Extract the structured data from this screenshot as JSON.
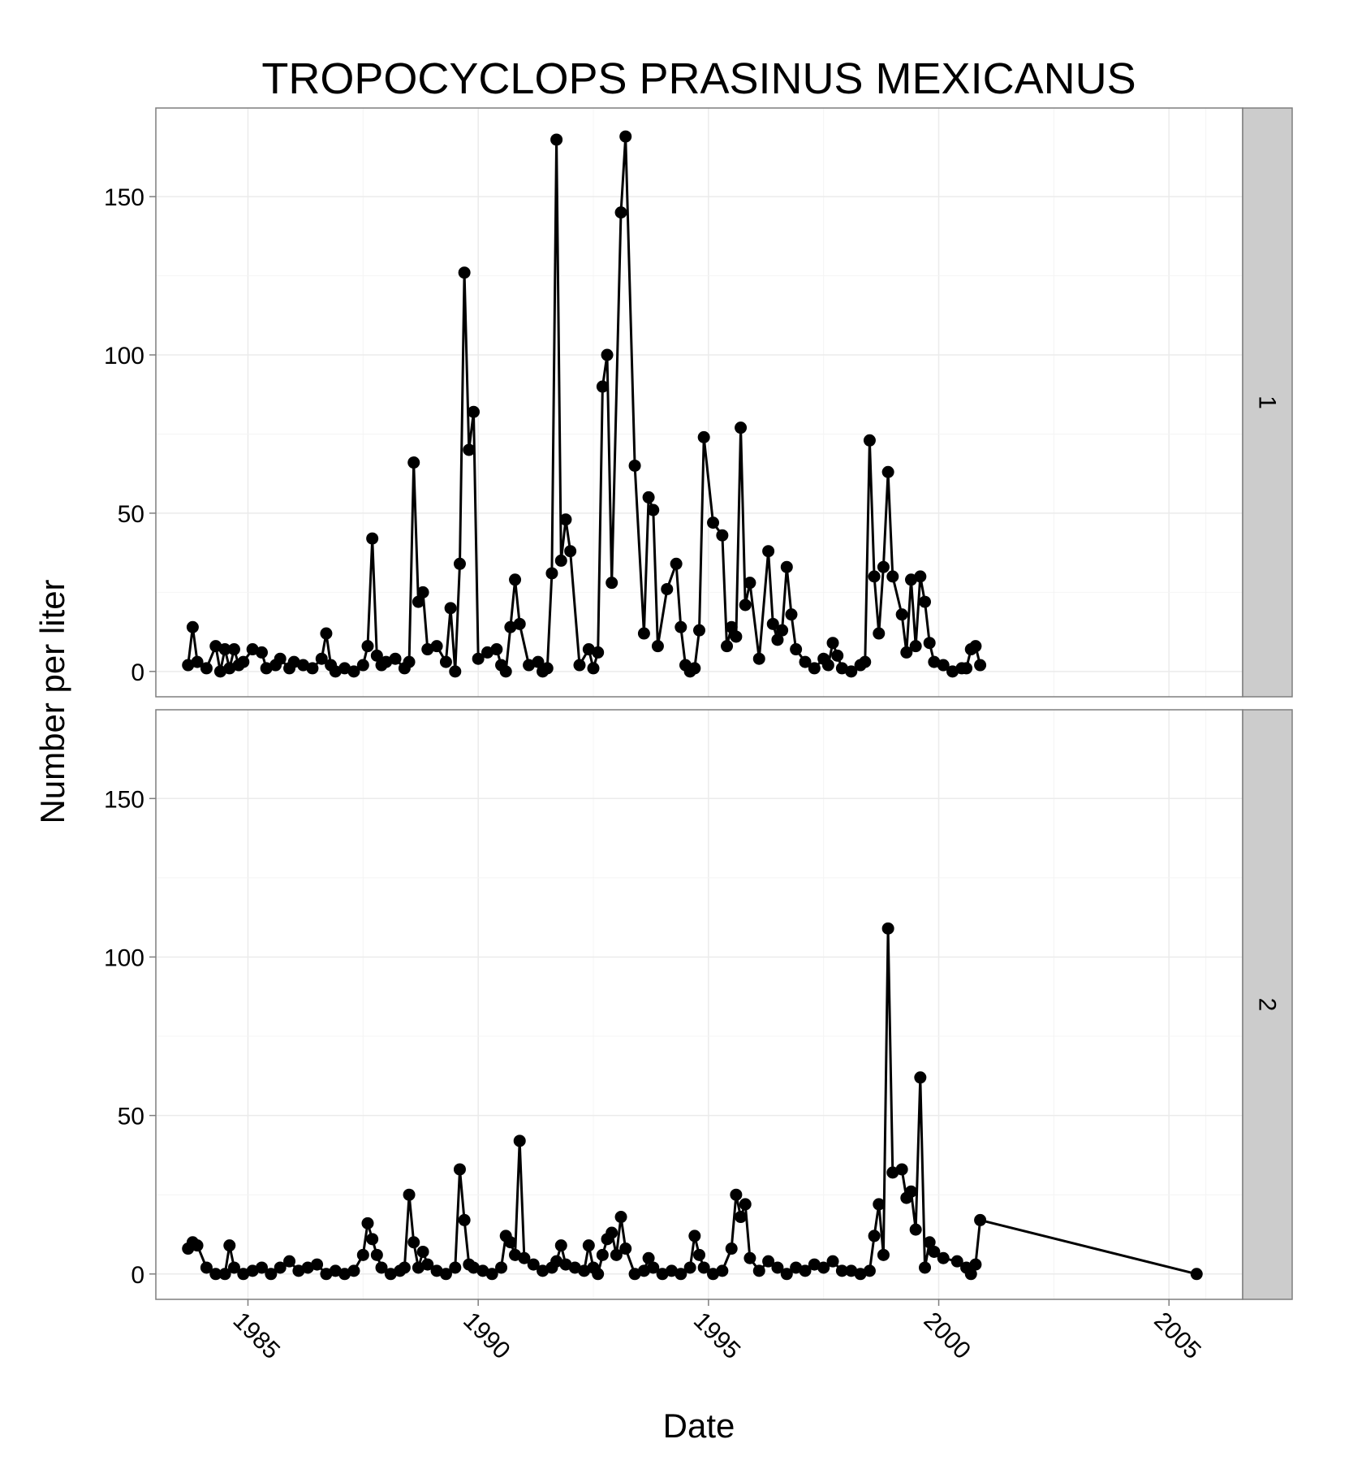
{
  "chart_data": {
    "type": "line",
    "title": "TROPOCYCLOPS PRASINUS MEXICANUS",
    "xlabel": "Date",
    "ylabel": "Number per liter",
    "xlim": [
      1983.0,
      2006.6
    ],
    "ylim": [
      -8,
      178
    ],
    "x_ticks": [
      1985,
      1990,
      1995,
      2000,
      2005
    ],
    "x_tick_labels": [
      "1985",
      "1990",
      "1995",
      "2000",
      "2005"
    ],
    "y_ticks": [
      0,
      50,
      100,
      150
    ],
    "y_tick_labels": [
      "0",
      "50",
      "100",
      "150"
    ],
    "grid": true,
    "colors": {
      "panel_background": "#ffffff",
      "strip_background": "#cccccc",
      "line": "#000000",
      "grid": "#ebebeb"
    },
    "panels": [
      {
        "strip_label": "1",
        "x": [
          1983.7,
          1983.8,
          1983.9,
          1984.1,
          1984.3,
          1984.4,
          1984.5,
          1984.6,
          1984.7,
          1984.8,
          1984.9,
          1985.1,
          1985.3,
          1985.4,
          1985.6,
          1985.7,
          1985.9,
          1986.0,
          1986.2,
          1986.4,
          1986.6,
          1986.7,
          1986.8,
          1986.9,
          1987.1,
          1987.3,
          1987.5,
          1987.6,
          1987.7,
          1987.8,
          1987.9,
          1988.0,
          1988.2,
          1988.4,
          1988.5,
          1988.6,
          1988.7,
          1988.8,
          1988.9,
          1989.1,
          1989.3,
          1989.4,
          1989.5,
          1989.6,
          1989.7,
          1989.8,
          1989.9,
          1990.0,
          1990.2,
          1990.4,
          1990.5,
          1990.6,
          1990.7,
          1990.8,
          1990.9,
          1991.1,
          1991.3,
          1991.4,
          1991.5,
          1991.6,
          1991.7,
          1991.8,
          1991.9,
          1992.0,
          1992.2,
          1992.4,
          1992.5,
          1992.6,
          1992.7,
          1992.8,
          1992.9,
          1993.1,
          1993.2,
          1993.4,
          1993.6,
          1993.7,
          1993.8,
          1993.9,
          1994.1,
          1994.3,
          1994.4,
          1994.5,
          1994.6,
          1994.7,
          1994.8,
          1994.9,
          1995.1,
          1995.3,
          1995.4,
          1995.5,
          1995.6,
          1995.7,
          1995.8,
          1995.9,
          1996.1,
          1996.3,
          1996.4,
          1996.5,
          1996.6,
          1996.7,
          1996.8,
          1996.9,
          1997.1,
          1997.3,
          1997.5,
          1997.6,
          1997.7,
          1997.8,
          1997.9,
          1998.1,
          1998.3,
          1998.4,
          1998.5,
          1998.6,
          1998.7,
          1998.8,
          1998.9,
          1999.0,
          1999.2,
          1999.3,
          1999.4,
          1999.5,
          1999.6,
          1999.7,
          1999.8,
          1999.9,
          2000.1,
          2000.3,
          2000.5,
          2000.6,
          2000.7,
          2000.8,
          2000.9
        ],
        "y": [
          2,
          14,
          3,
          1,
          8,
          0,
          7,
          1,
          7,
          2,
          3,
          7,
          6,
          1,
          2,
          4,
          1,
          3,
          2,
          1,
          4,
          12,
          2,
          0,
          1,
          0,
          2,
          8,
          42,
          5,
          2,
          3,
          4,
          1,
          3,
          66,
          22,
          25,
          7,
          8,
          3,
          20,
          0,
          34,
          126,
          70,
          82,
          4,
          6,
          7,
          2,
          0,
          14,
          29,
          15,
          2,
          3,
          0,
          1,
          31,
          168,
          35,
          48,
          38,
          2,
          7,
          1,
          6,
          90,
          100,
          28,
          145,
          169,
          65,
          12,
          55,
          51,
          8,
          26,
          34,
          14,
          2,
          0,
          1,
          13,
          74,
          47,
          43,
          8,
          14,
          11,
          77,
          21,
          28,
          4,
          38,
          15,
          10,
          13,
          33,
          18,
          7,
          3,
          1,
          4,
          2,
          9,
          5,
          1,
          0,
          2,
          3,
          73,
          30,
          12,
          33,
          63,
          30,
          18,
          6,
          29,
          8,
          30,
          22,
          9,
          3,
          2,
          0,
          1,
          1,
          7,
          8,
          2
        ],
        "x_line": [
          1983.7,
          1983.8,
          1983.9,
          1984.1,
          1984.3,
          1984.4,
          1984.5,
          1984.6,
          1984.7,
          1984.8,
          1984.9,
          1985.1,
          1985.3,
          1985.4,
          1985.6,
          1985.7,
          1985.9,
          1986.0,
          1986.2,
          1986.4,
          1986.6,
          1986.7,
          1986.8,
          1986.9,
          1987.1,
          1987.3,
          1987.5,
          1987.6,
          1987.7,
          1987.8,
          1987.9,
          1988.0,
          1988.2,
          1988.4,
          1988.5,
          1988.6,
          1988.7,
          1988.8,
          1988.9,
          1989.1,
          1989.3,
          1989.4,
          1989.5,
          1989.6,
          1989.7,
          1989.8,
          1989.9,
          1990.0,
          1990.2,
          1990.4,
          1990.5,
          1990.6,
          1990.7,
          1990.8,
          1990.9,
          1991.1,
          1991.3,
          1991.4,
          1991.5,
          1991.6,
          1991.7,
          1991.8,
          1991.9,
          1992.0,
          1992.2,
          1992.4,
          1992.5,
          1992.6,
          1992.7,
          1992.8,
          1992.9,
          1993.1,
          1993.2,
          1993.4,
          1993.6,
          1993.7,
          1993.8,
          1993.9,
          1994.1,
          1994.3,
          1994.4,
          1994.5,
          1994.6,
          1994.7,
          1994.8,
          1994.9,
          1995.1,
          1995.3,
          1995.4,
          1995.5,
          1995.6,
          1995.7,
          1995.8,
          1995.9,
          1996.1,
          1996.3,
          1996.4,
          1996.5,
          1996.6,
          1996.7,
          1996.8,
          1996.9,
          1997.1,
          1997.3,
          1997.5,
          1997.6,
          1997.7,
          1997.8,
          1997.9,
          1998.1,
          1998.3,
          1998.4,
          1998.5,
          1998.6,
          1998.7,
          1998.8,
          1998.9,
          1999.0,
          1999.2,
          1999.3,
          1999.4,
          1999.5,
          1999.6,
          1999.7,
          1999.8,
          1999.9,
          2000.1,
          2000.3,
          2000.5,
          2000.6,
          2000.7,
          2000.8,
          2000.9
        ]
      },
      {
        "strip_label": "2",
        "x": [
          1983.7,
          1983.8,
          1983.9,
          1984.1,
          1984.3,
          1984.5,
          1984.6,
          1984.7,
          1984.9,
          1985.1,
          1985.3,
          1985.5,
          1985.7,
          1985.9,
          1986.1,
          1986.3,
          1986.5,
          1986.7,
          1986.9,
          1987.1,
          1987.3,
          1987.5,
          1987.6,
          1987.7,
          1987.8,
          1987.9,
          1988.1,
          1988.3,
          1988.4,
          1988.5,
          1988.6,
          1988.7,
          1988.8,
          1988.9,
          1989.1,
          1989.3,
          1989.5,
          1989.6,
          1989.7,
          1989.8,
          1989.9,
          1990.1,
          1990.3,
          1990.5,
          1990.6,
          1990.7,
          1990.8,
          1990.9,
          1991.0,
          1991.2,
          1991.4,
          1991.6,
          1991.7,
          1991.8,
          1991.9,
          1992.1,
          1992.3,
          1992.4,
          1992.5,
          1992.6,
          1992.7,
          1992.8,
          1992.9,
          1993.0,
          1993.1,
          1993.2,
          1993.4,
          1993.6,
          1993.7,
          1993.8,
          1994.0,
          1994.2,
          1994.4,
          1994.6,
          1994.7,
          1994.8,
          1994.9,
          1995.1,
          1995.3,
          1995.5,
          1995.6,
          1995.7,
          1995.8,
          1995.9,
          1996.1,
          1996.3,
          1996.5,
          1996.7,
          1996.9,
          1997.1,
          1997.3,
          1997.5,
          1997.7,
          1997.9,
          1998.1,
          1998.3,
          1998.5,
          1998.6,
          1998.7,
          1998.8,
          1998.9,
          1999.0,
          1999.2,
          1999.3,
          1999.4,
          1999.5,
          1999.6,
          1999.7,
          1999.8,
          1999.9,
          2000.1,
          2000.4,
          2000.6,
          2000.7,
          2000.8,
          2000.9,
          2005.6
        ],
        "y": [
          8,
          10,
          9,
          2,
          0,
          0,
          9,
          2,
          0,
          1,
          2,
          0,
          2,
          4,
          1,
          2,
          3,
          0,
          1,
          0,
          1,
          6,
          16,
          11,
          6,
          2,
          0,
          1,
          2,
          25,
          10,
          2,
          7,
          3,
          1,
          0,
          2,
          33,
          17,
          3,
          2,
          1,
          0,
          2,
          12,
          10,
          6,
          42,
          5,
          3,
          1,
          2,
          4,
          9,
          3,
          2,
          1,
          9,
          2,
          0,
          6,
          11,
          13,
          6,
          18,
          8,
          0,
          1,
          5,
          2,
          0,
          1,
          0,
          2,
          12,
          6,
          2,
          0,
          1,
          8,
          25,
          18,
          22,
          5,
          1,
          4,
          2,
          0,
          2,
          1,
          3,
          2,
          4,
          1,
          1,
          0,
          1,
          12,
          22,
          6,
          109,
          32,
          33,
          24,
          26,
          14,
          62,
          2,
          10,
          7,
          5,
          4,
          2,
          0,
          3,
          17,
          0
        ]
      }
    ]
  }
}
